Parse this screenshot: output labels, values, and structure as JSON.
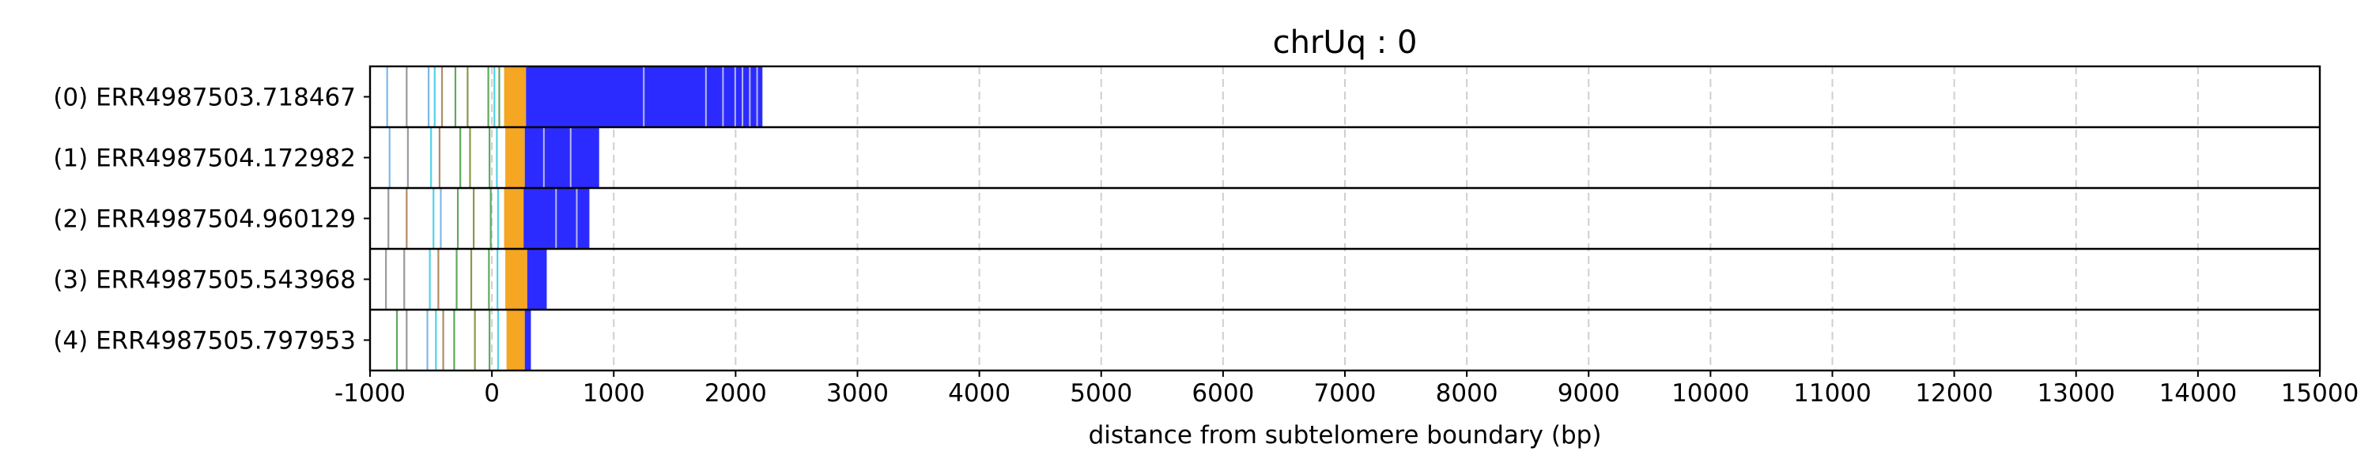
{
  "chart_data": {
    "type": "bar",
    "title": "chrUq : 0",
    "xlabel": "distance from subtelomere boundary (bp)",
    "ylabel": "",
    "xlim": [
      -1000,
      15000
    ],
    "xticks": [
      -1000,
      0,
      1000,
      2000,
      3000,
      4000,
      5000,
      6000,
      7000,
      8000,
      9000,
      10000,
      11000,
      12000,
      13000,
      14000,
      15000
    ],
    "xtick_labels": [
      "-1000",
      "0",
      "1000",
      "2000",
      "3000",
      "4000",
      "5000",
      "6000",
      "7000",
      "8000",
      "9000",
      "10000",
      "11000",
      "12000",
      "13000",
      "14000",
      "15000"
    ],
    "grid": "vertical dashed",
    "colors": {
      "repeat": "#2b2bff",
      "core": "#f5a623",
      "light_blue": "#7fb8e8",
      "cyan": "#4fd3e6",
      "green": "#5fa85f",
      "gray": "#9a9a9a",
      "brown": "#b08b6a",
      "olive": "#8a9a4a"
    },
    "reads": [
      {
        "label": "(0) ERR4987503.718467",
        "orange_start": 100,
        "orange_end": 280,
        "blue_start": 280,
        "blue_end": 2220,
        "gaps": [
          1240,
          1750,
          1890,
          1990,
          2050,
          2110,
          2170
        ],
        "marks": [
          {
            "x": -860,
            "color": "light_blue"
          },
          {
            "x": -700,
            "color": "gray"
          },
          {
            "x": -520,
            "color": "light_blue"
          },
          {
            "x": -470,
            "color": "cyan"
          },
          {
            "x": -410,
            "color": "brown"
          },
          {
            "x": -300,
            "color": "green"
          },
          {
            "x": -200,
            "color": "olive"
          },
          {
            "x": -30,
            "color": "green"
          },
          {
            "x": 20,
            "color": "cyan"
          },
          {
            "x": 60,
            "color": "green"
          }
        ]
      },
      {
        "label": "(1) ERR4987504.172982",
        "orange_start": 110,
        "orange_end": 270,
        "blue_start": 270,
        "blue_end": 880,
        "gaps": [
          420,
          640
        ],
        "marks": [
          {
            "x": -840,
            "color": "light_blue"
          },
          {
            "x": -690,
            "color": "gray"
          },
          {
            "x": -500,
            "color": "cyan"
          },
          {
            "x": -430,
            "color": "brown"
          },
          {
            "x": -260,
            "color": "green"
          },
          {
            "x": -180,
            "color": "olive"
          },
          {
            "x": -20,
            "color": "green"
          },
          {
            "x": 40,
            "color": "cyan"
          }
        ]
      },
      {
        "label": "(2) ERR4987504.960129",
        "orange_start": 100,
        "orange_end": 260,
        "blue_start": 260,
        "blue_end": 800,
        "gaps": [
          520,
          690
        ],
        "marks": [
          {
            "x": -850,
            "color": "gray"
          },
          {
            "x": -700,
            "color": "brown"
          },
          {
            "x": -480,
            "color": "cyan"
          },
          {
            "x": -420,
            "color": "light_blue"
          },
          {
            "x": -280,
            "color": "green"
          },
          {
            "x": -150,
            "color": "olive"
          },
          {
            "x": -10,
            "color": "green"
          },
          {
            "x": 50,
            "color": "cyan"
          }
        ]
      },
      {
        "label": "(3) ERR4987505.543968",
        "orange_start": 110,
        "orange_end": 290,
        "blue_start": 290,
        "blue_end": 450,
        "gaps": [],
        "marks": [
          {
            "x": -870,
            "color": "gray"
          },
          {
            "x": -720,
            "color": "gray"
          },
          {
            "x": -510,
            "color": "cyan"
          },
          {
            "x": -440,
            "color": "brown"
          },
          {
            "x": -290,
            "color": "green"
          },
          {
            "x": -170,
            "color": "olive"
          },
          {
            "x": -25,
            "color": "green"
          },
          {
            "x": 45,
            "color": "cyan"
          }
        ]
      },
      {
        "label": "(4) ERR4987505.797953",
        "orange_start": 120,
        "orange_end": 270,
        "blue_start": 270,
        "blue_end": 320,
        "gaps": [],
        "marks": [
          {
            "x": -780,
            "color": "green"
          },
          {
            "x": -700,
            "color": "gray"
          },
          {
            "x": -530,
            "color": "light_blue"
          },
          {
            "x": -460,
            "color": "cyan"
          },
          {
            "x": -400,
            "color": "brown"
          },
          {
            "x": -310,
            "color": "green"
          },
          {
            "x": -140,
            "color": "olive"
          },
          {
            "x": -20,
            "color": "green"
          },
          {
            "x": 50,
            "color": "cyan"
          }
        ]
      }
    ]
  }
}
